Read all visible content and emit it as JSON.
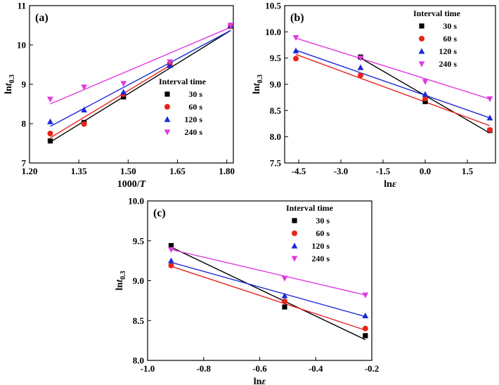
{
  "chart_data": [
    {
      "type": "scatter",
      "panel": "(a)",
      "xlabel": "1000/T",
      "ylabel": "lnt0.3",
      "xlim": [
        1.2,
        1.82
      ],
      "ylim": [
        7,
        11
      ],
      "xticks": [
        1.2,
        1.35,
        1.5,
        1.65,
        1.8
      ],
      "xtick_labels": [
        "1.20",
        "1.35",
        "1.50",
        "1.65",
        "1.80"
      ],
      "yticks": [
        7,
        8,
        9,
        10,
        11
      ],
      "ytick_labels": [
        "7",
        "8",
        "9",
        "10",
        "11"
      ],
      "legend_title": "Interval time",
      "legend_position": "right-center",
      "series": [
        {
          "name": "30 s",
          "color": "#000000",
          "marker": "square",
          "x": [
            1.263,
            1.366,
            1.486,
            1.627,
            1.812
          ],
          "y": [
            7.56,
            8.03,
            8.68,
            9.5,
            10.48
          ],
          "fit": [
            [
              1.263,
              7.53
            ],
            [
              1.812,
              10.37
            ]
          ]
        },
        {
          "name": "60 s",
          "color": "#e8231a",
          "marker": "circle",
          "x": [
            1.263,
            1.366,
            1.486,
            1.627,
            1.812
          ],
          "y": [
            7.75,
            7.99,
            8.75,
            9.5,
            10.48
          ],
          "fit": [
            [
              1.263,
              7.64
            ],
            [
              1.627,
              9.48
            ]
          ]
        },
        {
          "name": "120 s",
          "color": "#1a2ad8",
          "marker": "triangle",
          "x": [
            1.263,
            1.366,
            1.486,
            1.627,
            1.812
          ],
          "y": [
            8.05,
            8.35,
            8.8,
            9.48,
            10.5
          ],
          "fit": [
            [
              1.263,
              7.93
            ],
            [
              1.812,
              10.37
            ]
          ]
        },
        {
          "name": "240 s",
          "color": "#e03ae0",
          "marker": "triangle-down",
          "x": [
            1.263,
            1.366,
            1.486,
            1.627,
            1.812
          ],
          "y": [
            8.62,
            8.93,
            9.02,
            9.57,
            10.5
          ],
          "fit": [
            [
              1.263,
              8.5
            ],
            [
              1.812,
              10.45
            ]
          ]
        }
      ]
    },
    {
      "type": "scatter",
      "panel": "(b)",
      "xlabel": "lnε",
      "ylabel": "lnt0.3",
      "xlim": [
        -5.0,
        2.5
      ],
      "ylim": [
        7.5,
        10.5
      ],
      "xticks": [
        -4.5,
        -3.0,
        -1.5,
        0.0,
        1.5
      ],
      "xtick_labels": [
        "-4.5",
        "-3.0",
        "-1.5",
        "0.0",
        "1.5"
      ],
      "yticks": [
        7.5,
        8.0,
        8.5,
        9.0,
        9.5,
        10.0,
        10.5
      ],
      "ytick_labels": [
        "7.5",
        "8.0",
        "8.5",
        "9.0",
        "9.5",
        "10.0",
        "10.5"
      ],
      "legend_title": "Interval time",
      "legend_position": "top-right",
      "series": [
        {
          "name": "30 s",
          "color": "#000000",
          "marker": "square",
          "x": [
            -2.3,
            0.0,
            2.3
          ],
          "y": [
            9.52,
            8.67,
            8.12
          ],
          "fit": [
            [
              -2.3,
              9.5
            ],
            [
              2.3,
              8.07
            ]
          ]
        },
        {
          "name": "60 s",
          "color": "#e8231a",
          "marker": "circle",
          "x": [
            -4.6,
            -2.3,
            0.0,
            2.3
          ],
          "y": [
            9.49,
            9.17,
            8.73,
            8.13
          ],
          "fit": [
            [
              -4.6,
              9.57
            ],
            [
              2.3,
              8.21
            ]
          ]
        },
        {
          "name": "120 s",
          "color": "#1a2ad8",
          "marker": "triangle",
          "x": [
            -4.6,
            -2.3,
            0.0,
            2.3
          ],
          "y": [
            9.64,
            9.32,
            8.81,
            8.36
          ],
          "fit": [
            [
              -4.6,
              9.65
            ],
            [
              2.3,
              8.36
            ]
          ]
        },
        {
          "name": "240 s",
          "color": "#e03ae0",
          "marker": "triangle-down",
          "x": [
            -4.6,
            -2.3,
            0.0,
            2.3
          ],
          "y": [
            9.89,
            9.5,
            9.05,
            8.72
          ],
          "fit": [
            [
              -4.6,
              9.88
            ],
            [
              2.3,
              8.72
            ]
          ]
        }
      ]
    },
    {
      "type": "scatter",
      "panel": "(c)",
      "xlabel": "lnε",
      "ylabel": "lnt0.3",
      "xlim": [
        -1.0,
        -0.2
      ],
      "ylim": [
        8.0,
        10.0
      ],
      "xticks": [
        -1.0,
        -0.8,
        -0.6,
        -0.4,
        -0.2
      ],
      "xtick_labels": [
        "-1.0",
        "-0.8",
        "-0.6",
        "-0.4",
        "-0.2"
      ],
      "yticks": [
        8.0,
        8.5,
        9.0,
        9.5,
        10.0
      ],
      "ytick_labels": [
        "8.0",
        "8.5",
        "9.0",
        "9.5",
        "10.0"
      ],
      "legend_title": "Interval time",
      "legend_position": "top-right",
      "series": [
        {
          "name": "30 s",
          "color": "#000000",
          "marker": "square",
          "x": [
            -0.916,
            -0.511,
            -0.223
          ],
          "y": [
            9.44,
            8.67,
            8.31
          ],
          "fit": [
            [
              -0.916,
              9.42
            ],
            [
              -0.223,
              8.26
            ]
          ]
        },
        {
          "name": "60 s",
          "color": "#e8231a",
          "marker": "circle",
          "x": [
            -0.916,
            -0.511,
            -0.223
          ],
          "y": [
            9.19,
            8.74,
            8.4
          ],
          "fit": [
            [
              -0.916,
              9.18
            ],
            [
              -0.223,
              8.38
            ]
          ]
        },
        {
          "name": "120 s",
          "color": "#1a2ad8",
          "marker": "triangle",
          "x": [
            -0.916,
            -0.511,
            -0.223
          ],
          "y": [
            9.25,
            8.81,
            8.56
          ],
          "fit": [
            [
              -0.916,
              9.23
            ],
            [
              -0.223,
              8.55
            ]
          ]
        },
        {
          "name": "240 s",
          "color": "#e03ae0",
          "marker": "triangle-down",
          "x": [
            -0.916,
            -0.511,
            -0.223
          ],
          "y": [
            9.39,
            9.03,
            8.82
          ],
          "fit": [
            [
              -0.916,
              9.39
            ],
            [
              -0.223,
              8.82
            ]
          ]
        }
      ]
    }
  ]
}
